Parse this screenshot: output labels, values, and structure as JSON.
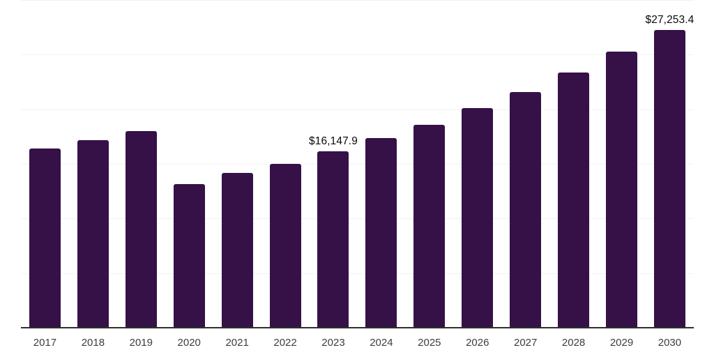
{
  "chart": {
    "background": "#ffffff",
    "bar_color": "#351148",
    "gridline_color": "#f2f2f2",
    "axis_line_color": "#2e2e2e",
    "data_label_color": "#0a0a0a",
    "tick_label_color": "#3d3d3d"
  },
  "chart_data": {
    "type": "bar",
    "title": "",
    "xlabel": "",
    "ylabel": "",
    "categories": [
      "2017",
      "2018",
      "2019",
      "2020",
      "2021",
      "2022",
      "2023",
      "2024",
      "2025",
      "2026",
      "2027",
      "2028",
      "2029",
      "2030"
    ],
    "values": [
      16400,
      17150,
      18000,
      13150,
      14150,
      15000,
      16147.9,
      17350,
      18600,
      20100,
      21600,
      23350,
      25250,
      27253.4
    ],
    "data_labels": [
      "",
      "",
      "",
      "",
      "",
      "",
      "$16,147.9",
      "",
      "",
      "",
      "",
      "",
      "",
      "$27,253.4"
    ],
    "ylim": [
      0,
      30000
    ],
    "gridline_step": 5000,
    "grid": "horizontal",
    "y_axis_tick_labels_visible": false,
    "legend": "none"
  }
}
